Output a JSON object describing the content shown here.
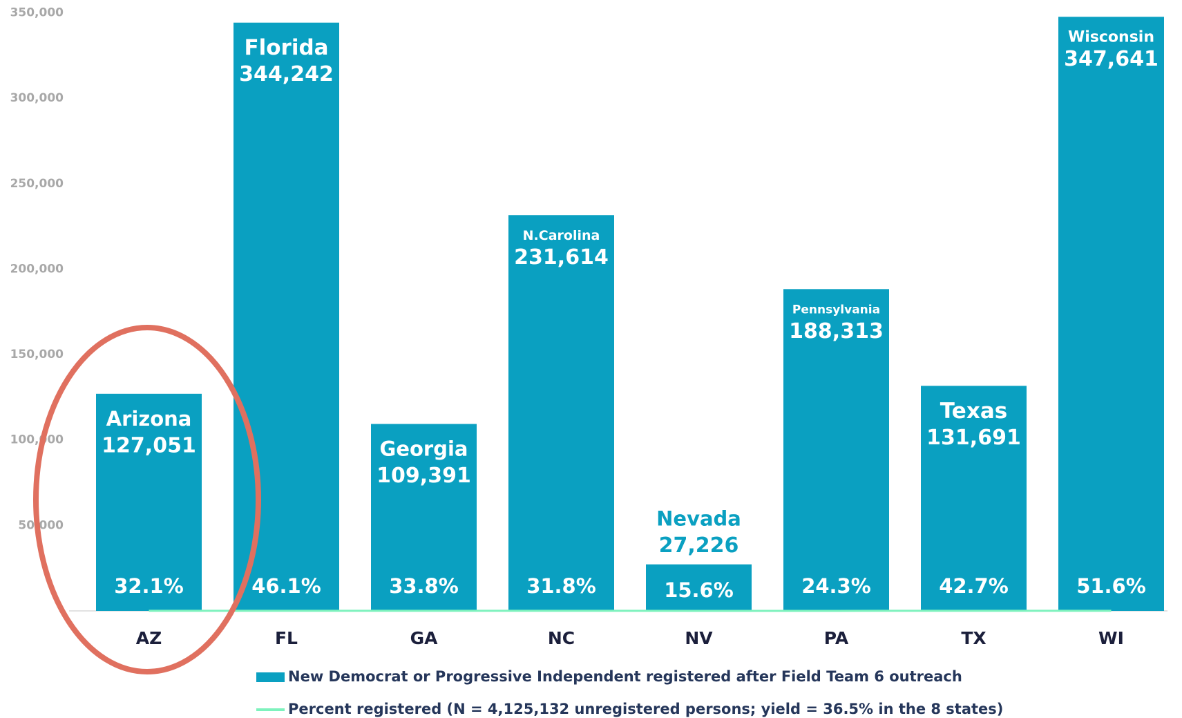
{
  "chart_data": {
    "type": "bar",
    "categories": [
      "AZ",
      "FL",
      "GA",
      "NC",
      "NV",
      "PA",
      "TX",
      "WI"
    ],
    "bar_labels": [
      "Arizona",
      "Florida",
      "Georgia",
      "N.Carolina",
      "Nevada",
      "Pennsylvania",
      "Texas",
      "Wisconsin"
    ],
    "series": [
      {
        "name": "New Democrat or Progressive Independent registered after Field Team 6 outreach",
        "type": "bar",
        "color": "#0aa0c1",
        "values": [
          127051,
          344242,
          109391,
          231614,
          27226,
          188313,
          131691,
          347641
        ],
        "value_labels": [
          "127,051",
          "344,242",
          "109,391",
          "231,614",
          "27,226",
          "188,313",
          "131,691",
          "347,641"
        ]
      },
      {
        "name": "Percent registered (N = 4,125,132 unregistered persons; yield = 36.5% in the 8 states)",
        "type": "line",
        "color": "#7ef2bd",
        "values": [
          32.1,
          46.1,
          33.8,
          31.8,
          15.6,
          24.3,
          42.7,
          51.6
        ],
        "value_labels": [
          "32.1%",
          "46.1%",
          "33.8%",
          "31.8%",
          "15.6%",
          "24.3%",
          "42.7%",
          "51.6%"
        ]
      }
    ],
    "ylim": [
      0,
      350000
    ],
    "yticks": [
      {
        "value": 0,
        "label": "-"
      },
      {
        "value": 50000,
        "label": "50,000"
      },
      {
        "value": 100000,
        "label": "100,000"
      },
      {
        "value": 150000,
        "label": "150,000"
      },
      {
        "value": 200000,
        "label": "200,000"
      },
      {
        "value": 250000,
        "label": "250,000"
      },
      {
        "value": 300000,
        "label": "300,000"
      },
      {
        "value": 350000,
        "label": "350,000"
      }
    ]
  }
}
